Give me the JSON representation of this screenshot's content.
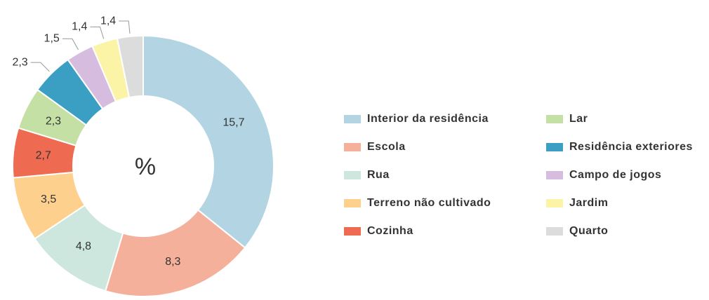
{
  "chart_data": {
    "type": "donut",
    "center_label": "%",
    "categories": [
      "Interior da residência",
      "Escola",
      "Rua",
      "Terreno não cultivado",
      "Cozinha",
      "Lar",
      "Residência exteriores",
      "Campo de jogos",
      "Jardim",
      "Quarto"
    ],
    "values": [
      15.7,
      8.3,
      4.8,
      3.5,
      2.7,
      2.3,
      2.3,
      1.5,
      1.4,
      1.4
    ],
    "value_labels": [
      "15,7",
      "8,3",
      "4,8",
      "3,5",
      "2,7",
      "2,3",
      "2,3",
      "1,5",
      "1,4",
      "1,4"
    ],
    "colors": [
      "#b3d4e3",
      "#f4b09a",
      "#cde7de",
      "#fdd08e",
      "#ee6a50",
      "#c5e0a5",
      "#3a9fc2",
      "#d6bde0",
      "#fbf4a6",
      "#dcdcdc"
    ],
    "legend": "right"
  }
}
